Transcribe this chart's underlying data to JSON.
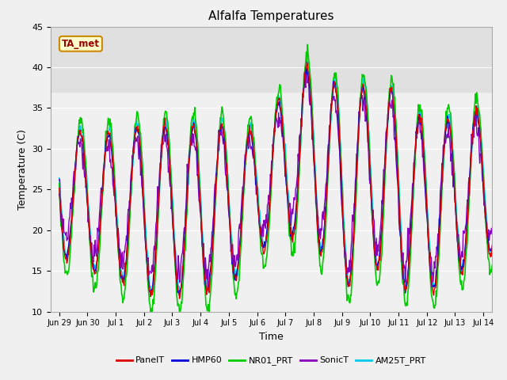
{
  "title": "Alfalfa Temperatures",
  "xlabel": "Time",
  "ylabel": "Temperature (C)",
  "ylim": [
    10,
    45
  ],
  "annotation_text": "TA_met",
  "series_names": [
    "PanelT",
    "HMP60",
    "NR01_PRT",
    "SonicT",
    "AM25T_PRT"
  ],
  "series_colors": [
    "#dd0000",
    "#0000dd",
    "#00cc00",
    "#8800bb",
    "#00ccee"
  ],
  "tick_labels": [
    "Jun 29",
    "Jun 30",
    "Jul 1",
    "Jul 2",
    "Jul 3",
    "Jul 4",
    "Jul 5",
    "Jul 6",
    "Jul 7",
    "Jul 8",
    "Jul 9",
    "Jul 10",
    "Jul 11",
    "Jul 12",
    "Jul 13",
    "Jul 14"
  ],
  "shaded_region": [
    37,
    45
  ],
  "shaded_color": "#e0e0e0",
  "plot_bg_color": "#f0f0f0",
  "fig_bg_color": "#f0f0f0",
  "grid_color": "#ffffff",
  "peak_temps": [
    33,
    32,
    32,
    33,
    33,
    33,
    33,
    32,
    37,
    41,
    37,
    38,
    37,
    33,
    34,
    35
  ],
  "trough_temps": [
    17,
    15,
    14,
    12,
    12,
    12,
    13,
    17,
    19,
    19,
    12,
    16,
    13,
    12,
    14,
    17
  ]
}
